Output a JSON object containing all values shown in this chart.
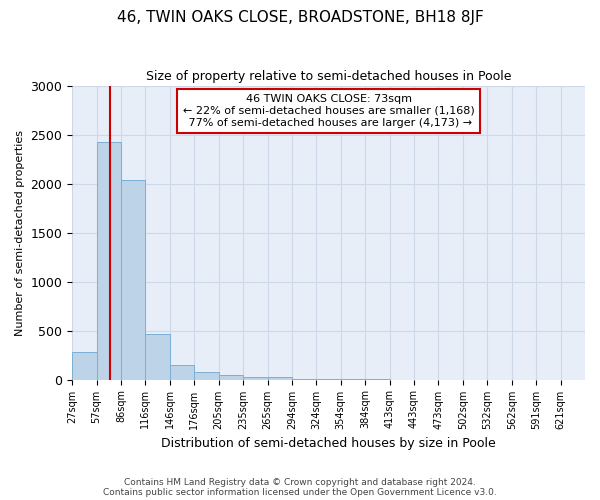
{
  "title": "46, TWIN OAKS CLOSE, BROADSTONE, BH18 8JF",
  "subtitle": "Size of property relative to semi-detached houses in Poole",
  "xlabel": "Distribution of semi-detached houses by size in Poole",
  "ylabel": "Number of semi-detached properties",
  "property_label": "46 TWIN OAKS CLOSE: 73sqm",
  "pct_smaller": 22,
  "count_smaller": 1168,
  "pct_larger": 77,
  "count_larger": 4173,
  "bin_labels": [
    "27sqm",
    "57sqm",
    "86sqm",
    "116sqm",
    "146sqm",
    "176sqm",
    "205sqm",
    "235sqm",
    "265sqm",
    "294sqm",
    "324sqm",
    "354sqm",
    "384sqm",
    "413sqm",
    "443sqm",
    "473sqm",
    "502sqm",
    "532sqm",
    "562sqm",
    "591sqm",
    "621sqm"
  ],
  "bar_heights": [
    280,
    2420,
    2040,
    470,
    148,
    75,
    48,
    28,
    30,
    5,
    2,
    1,
    1,
    0,
    0,
    0,
    0,
    0,
    0,
    0,
    0
  ],
  "bar_color": "#bdd4e8",
  "bar_edge_color": "#7aafd4",
  "vline_color": "#cc0000",
  "vline_bin": 1,
  "ylim": [
    0,
    3000
  ],
  "yticks": [
    0,
    500,
    1000,
    1500,
    2000,
    2500,
    3000
  ],
  "grid_color": "#cdd8e8",
  "background_color": "#e8eef8",
  "annotation_box_color": "#ffffff",
  "annotation_box_edge": "#cc0000",
  "footer_line1": "Contains HM Land Registry data © Crown copyright and database right 2024.",
  "footer_line2": "Contains public sector information licensed under the Open Government Licence v3.0."
}
